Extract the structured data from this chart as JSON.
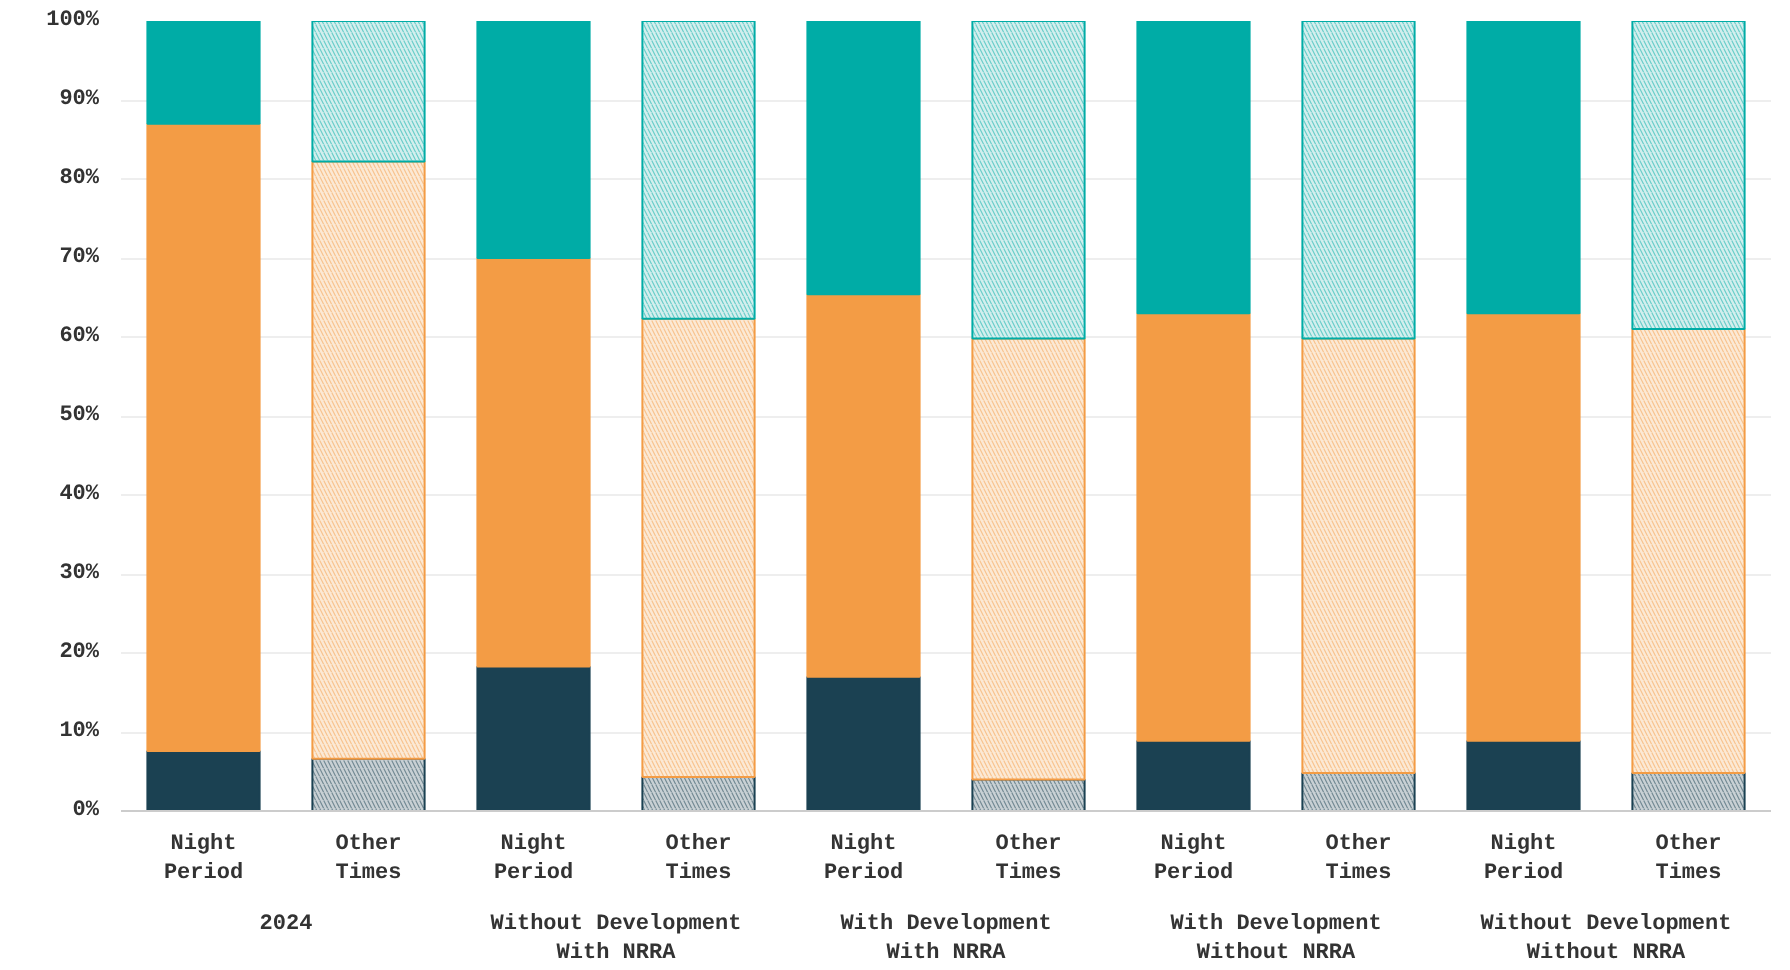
{
  "chart_data": {
    "type": "bar",
    "stacked": true,
    "categories": [
      "Night Period",
      "Other Times",
      "Night Period",
      "Other Times",
      "Night Period",
      "Other Times",
      "Night Period",
      "Other Times",
      "Night Period",
      "Other Times"
    ],
    "annotations": [
      "2024",
      "Without Development With NRRA",
      "With Development With NRRA",
      "With Development Without NRRA",
      "Without Development Without NRRA"
    ],
    "series": [
      {
        "color": "#1b4152",
        "colors": [
          "#1b4152",
          "#c8d0d4",
          "#1b4152",
          "#c8d0d4",
          "#1b4152",
          "#c8d0d4",
          "#1b4152",
          "#c8d0d4",
          "#1b4152",
          "#c8d0d4"
        ],
        "values": [
          7.6,
          6.6,
          18.3,
          4.3,
          17,
          4,
          8.9,
          4.8,
          8.9,
          4.8
        ]
      },
      {
        "color": "#f39c45",
        "colors": [
          "#f39c45",
          "#fbe9d5",
          "#f39c45",
          "#fbe9d5",
          "#f39c45",
          "#fbe9d5",
          "#f39c45",
          "#fbe9d5",
          "#f39c45",
          "#fbe9d5"
        ],
        "values": [
          79.4,
          75.6,
          51.7,
          58,
          48.4,
          55.8,
          54.1,
          55,
          54.1,
          56.2
        ]
      },
      {
        "color": "#00aca6",
        "colors": [
          "#00aca6",
          "#d3eeed",
          "#00aca6",
          "#d3eeed",
          "#00aca6",
          "#d3eeed",
          "#00aca6",
          "#d3eeed",
          "#00aca6",
          "#d3eeed"
        ],
        "values": [
          13,
          17.8,
          30,
          37.7,
          34.6,
          40.2,
          37,
          40.2,
          37,
          39
        ]
      }
    ],
    "ylim": [
      0,
      100
    ],
    "yticks": [
      {
        "value": 0,
        "label": "0%"
      },
      {
        "value": 10,
        "label": "10%"
      },
      {
        "value": 20,
        "label": "20%"
      },
      {
        "value": 30,
        "label": "30%"
      },
      {
        "value": 40,
        "label": "40%"
      },
      {
        "value": 50,
        "label": "50%"
      },
      {
        "value": 60,
        "label": "60%"
      },
      {
        "value": 70,
        "label": "70%"
      },
      {
        "value": 80,
        "label": "80%"
      },
      {
        "value": 90,
        "label": "90%"
      },
      {
        "value": 100,
        "label": "100%"
      }
    ],
    "grid": "y"
  }
}
